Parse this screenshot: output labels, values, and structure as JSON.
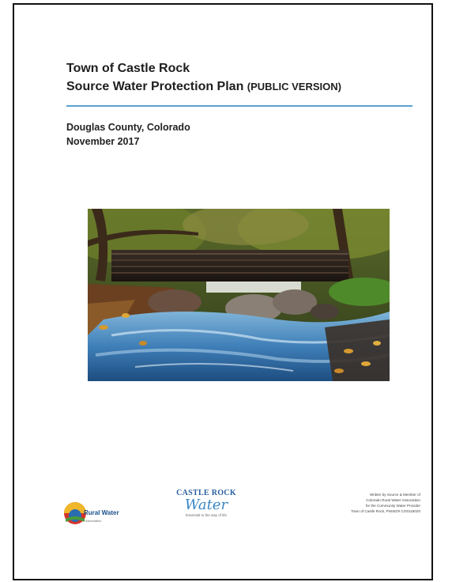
{
  "document": {
    "title_line1": "Town of Castle Rock",
    "title_line2_main": "Source Water Protection Plan",
    "title_line2_suffix": "(PUBLIC VERSION)",
    "location": "Douglas County, Colorado",
    "date": "November 2017"
  },
  "logos": {
    "rural_water_name": "Rural Water",
    "rural_water_sub": "Association",
    "castle_rock_top": "CASTLE ROCK",
    "castle_rock_word": "Water",
    "castle_rock_tag": "Essential to the way of life"
  },
  "credit": {
    "lines": [
      "Written by Source & Member of",
      "Colorado Rural Water Association",
      "for the Community Water Provider",
      "Town of Castle Rock, PWSID# CO0118020"
    ]
  },
  "colors": {
    "rule": "#5aa0d0",
    "title": "#1e1e1e",
    "castle_rock_blue": "#2a5f9e"
  }
}
